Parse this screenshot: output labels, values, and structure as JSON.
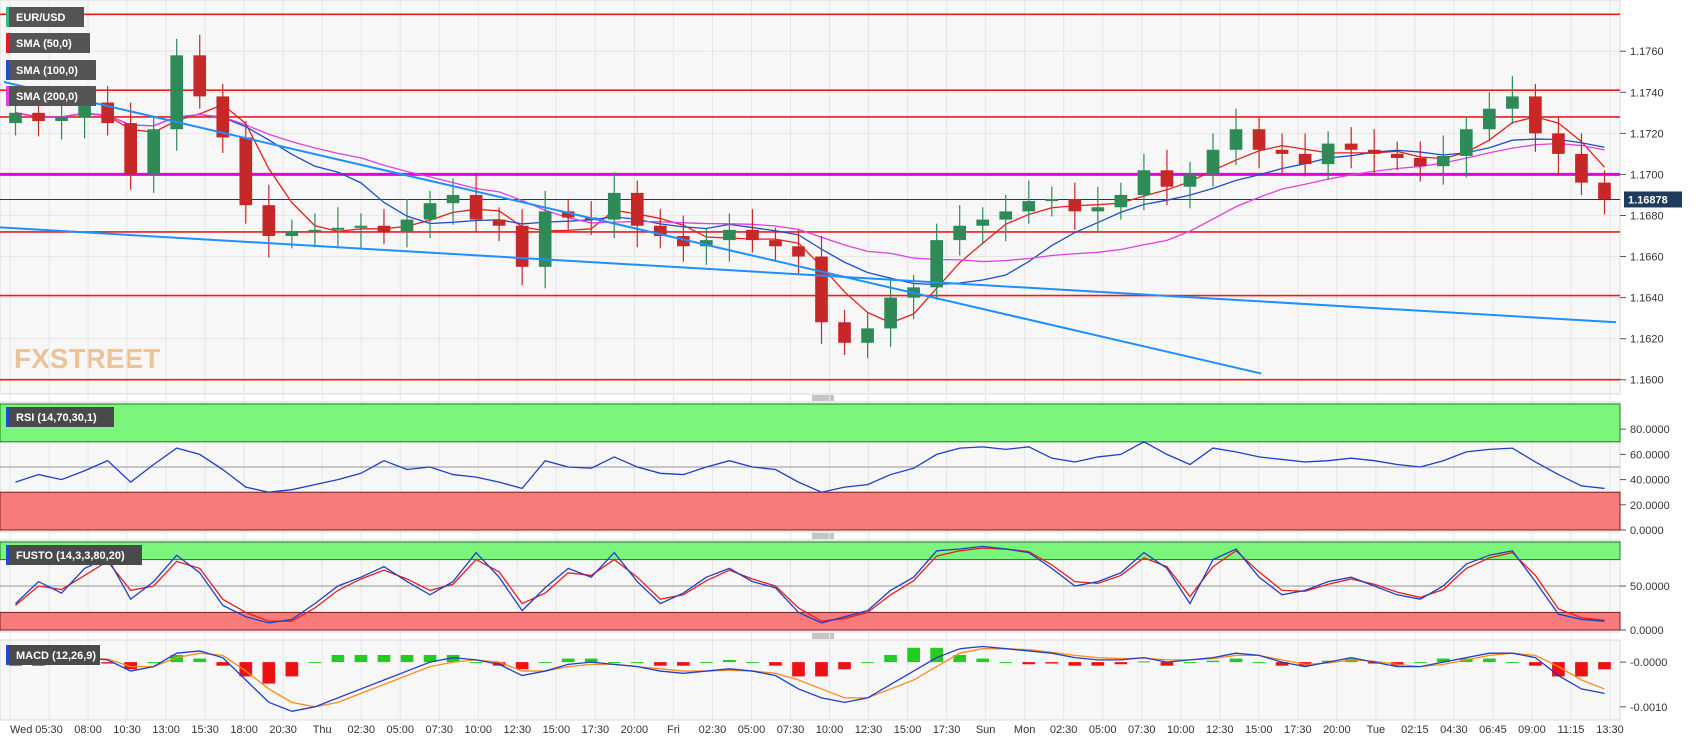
{
  "chart_data": {
    "type": "candlestick",
    "symbol": "EUR/USD",
    "watermark": "FXSTREET",
    "last_price": "1.16878",
    "indicators": [
      {
        "name": "SMA (50,0)",
        "color": "#e81e1e"
      },
      {
        "name": "SMA (100,0)",
        "color": "#1e4fc8"
      },
      {
        "name": "SMA (200,0)",
        "color": "#e040e0"
      }
    ],
    "price_axis": {
      "ylim": [
        1.1595,
        1.1783
      ],
      "ticks": [
        "1.1760",
        "1.1740",
        "1.1720",
        "1.1700",
        "1.1680",
        "1.1660",
        "1.1640",
        "1.1620",
        "1.1600"
      ]
    },
    "horizontal_lines": [
      {
        "price": 1.1778,
        "color": "#e81e1e"
      },
      {
        "price": 1.1741,
        "color": "#e81e1e"
      },
      {
        "price": 1.1728,
        "color": "#e81e1e"
      },
      {
        "price": 1.17,
        "color": "#e400e4"
      },
      {
        "price": 1.1672,
        "color": "#e81e1e"
      },
      {
        "price": 1.1641,
        "color": "#e81e1e"
      },
      {
        "price": 1.16,
        "color": "#e81e1e"
      }
    ],
    "trend_lines": [
      {
        "from": [
          0,
          1.1745
        ],
        "to": [
          78,
          1.1603
        ],
        "color": "#1e90ff"
      },
      {
        "from": [
          -2,
          1.1675
        ],
        "to": [
          100,
          1.1628
        ],
        "color": "#1e90ff"
      }
    ],
    "time_labels": [
      "Wed",
      "05:30",
      "08:00",
      "10:30",
      "13:00",
      "15:30",
      "18:00",
      "20:30",
      "Thu",
      "02:30",
      "05:00",
      "07:30",
      "10:00",
      "12:30",
      "15:00",
      "17:30",
      "20:00",
      "Fri",
      "02:30",
      "05:00",
      "07:30",
      "10:00",
      "12:30",
      "15:00",
      "17:30",
      "Sun",
      "Mon",
      "02:30",
      "05:00",
      "07:30",
      "10:00",
      "12:30",
      "15:00",
      "17:30",
      "20:00",
      "Tue",
      "02:15",
      "04:30",
      "06:45",
      "09:00",
      "11:15",
      "13:30"
    ],
    "price_close": [
      1.173,
      1.1726,
      1.1728,
      1.1735,
      1.1725,
      1.17,
      1.1722,
      1.1758,
      1.1738,
      1.1718,
      1.1685,
      1.167,
      1.1672,
      1.1673,
      1.1674,
      1.1675,
      1.1672,
      1.1678,
      1.1686,
      1.169,
      1.1678,
      1.1675,
      1.1655,
      1.1682,
      1.1679,
      1.1678,
      1.1691,
      1.1675,
      1.167,
      1.1665,
      1.1668,
      1.1673,
      1.1668,
      1.1665,
      1.166,
      1.1628,
      1.1618,
      1.1625,
      1.164,
      1.1645,
      1.1668,
      1.1675,
      1.1678,
      1.1682,
      1.1687,
      1.1688,
      1.1682,
      1.1684,
      1.169,
      1.1702,
      1.1694,
      1.17,
      1.1712,
      1.1722,
      1.1712,
      1.171,
      1.1705,
      1.1715,
      1.1712,
      1.171,
      1.1708,
      1.1704,
      1.1709,
      1.1722,
      1.1732,
      1.1738,
      1.172,
      1.171,
      1.1696,
      1.1688
    ],
    "rsi": {
      "label": "RSI (14,70,30,1)",
      "ylim": [
        0,
        100
      ],
      "upper": 70,
      "lower": 30,
      "ticks": [
        "80.0000",
        "60.0000",
        "40.0000",
        "20.0000",
        "0.0000"
      ],
      "values": [
        38,
        44,
        40,
        47,
        55,
        38,
        52,
        65,
        60,
        48,
        34,
        30,
        32,
        36,
        40,
        45,
        55,
        48,
        50,
        44,
        42,
        38,
        33,
        55,
        50,
        49,
        58,
        50,
        45,
        44,
        50,
        55,
        50,
        48,
        38,
        30,
        34,
        36,
        44,
        49,
        60,
        65,
        66,
        64,
        66,
        57,
        54,
        58,
        60,
        70,
        60,
        52,
        65,
        62,
        58,
        56,
        54,
        55,
        57,
        55,
        52,
        50,
        55,
        62,
        64,
        65,
        54,
        44,
        35,
        33
      ]
    },
    "stochastic": {
      "label": "FUSTO (14,3,3,80,20)",
      "ylim": [
        0,
        100
      ],
      "upper": 80,
      "lower": 20,
      "ticks": [
        "50.0000",
        "0.0000"
      ],
      "k": [
        30,
        55,
        42,
        70,
        82,
        35,
        55,
        85,
        65,
        28,
        15,
        8,
        12,
        30,
        50,
        60,
        72,
        55,
        40,
        55,
        88,
        60,
        22,
        48,
        70,
        60,
        88,
        55,
        30,
        42,
        60,
        70,
        55,
        48,
        20,
        8,
        15,
        22,
        45,
        60,
        90,
        92,
        95,
        92,
        88,
        70,
        50,
        55,
        65,
        88,
        70,
        30,
        80,
        92,
        60,
        40,
        45,
        55,
        60,
        50,
        40,
        35,
        50,
        75,
        85,
        90,
        55,
        18,
        12,
        10
      ],
      "d": [
        28,
        50,
        46,
        62,
        78,
        45,
        50,
        78,
        70,
        35,
        20,
        10,
        10,
        25,
        45,
        58,
        68,
        58,
        45,
        52,
        80,
        66,
        30,
        42,
        65,
        62,
        80,
        60,
        35,
        40,
        56,
        68,
        58,
        50,
        25,
        10,
        13,
        20,
        40,
        56,
        84,
        90,
        93,
        92,
        89,
        74,
        55,
        53,
        62,
        82,
        72,
        38,
        72,
        90,
        66,
        45,
        44,
        52,
        58,
        52,
        43,
        37,
        46,
        70,
        82,
        88,
        62,
        24,
        14,
        11
      ]
    },
    "macd": {
      "label": "MACD (12,26,9)",
      "ylim": [
        -0.00125,
        0.00045
      ],
      "ticks": [
        "-0.0000",
        "-0.0010"
      ],
      "macd": [
        5e-05,
        0.0,
        5e-05,
        0.0001,
        5e-05,
        -0.0002,
        -0.0001,
        0.0002,
        0.00025,
        0.0001,
        -0.0004,
        -0.0009,
        -0.0011,
        -0.001,
        -0.0008,
        -0.0006,
        -0.0004,
        -0.0002,
        0.0,
        0.0001,
        5e-05,
        -5e-05,
        -0.0003,
        -0.0002,
        -5e-05,
        0.0,
        -5e-05,
        -0.0001,
        -0.0002,
        -0.00025,
        -0.0002,
        -0.00015,
        -0.0002,
        -0.0003,
        -0.0006,
        -0.0008,
        -0.0009,
        -0.0008,
        -0.0005,
        -0.0002,
        0.0001,
        0.0003,
        0.00035,
        0.0003,
        0.00025,
        0.0002,
        0.0001,
        5e-05,
        5e-05,
        0.0001,
        0.0,
        5e-05,
        0.0001,
        0.0002,
        0.00015,
        0.0,
        -0.0001,
        0.0,
        0.0001,
        0.0,
        -0.0001,
        -0.0001,
        0.0,
        0.0001,
        0.0002,
        0.0002,
        0.0001,
        -0.0003,
        -0.0006,
        -0.0007
      ],
      "signal": [
        0.0001,
        5e-05,
        5e-05,
        8e-05,
        7e-05,
        -0.0001,
        -0.0001,
        0.0001,
        0.0002,
        0.00015,
        -0.0002,
        -0.0006,
        -0.0009,
        -0.001,
        -0.0009,
        -0.0007,
        -0.0005,
        -0.0003,
        -0.0001,
        0.0,
        5e-05,
        0.0,
        -0.0002,
        -0.0002,
        -0.0001,
        -5e-05,
        -5e-05,
        -0.0001,
        -0.00015,
        -0.0002,
        -0.0002,
        -0.00018,
        -0.0002,
        -0.00025,
        -0.0004,
        -0.0006,
        -0.0008,
        -0.0008,
        -0.0006,
        -0.0004,
        -0.0001,
        0.0002,
        0.0003,
        0.0003,
        0.00028,
        0.00022,
        0.00015,
        0.0001,
        8e-05,
        9e-05,
        5e-05,
        5e-05,
        8e-05,
        0.00015,
        0.00015,
        5e-05,
        -5e-05,
        -2e-05,
        5e-05,
        2e-05,
        -5e-05,
        -0.0001,
        -5e-05,
        5e-05,
        0.00015,
        0.0002,
        0.00015,
        -0.0001,
        -0.0004,
        -0.0006
      ]
    }
  }
}
